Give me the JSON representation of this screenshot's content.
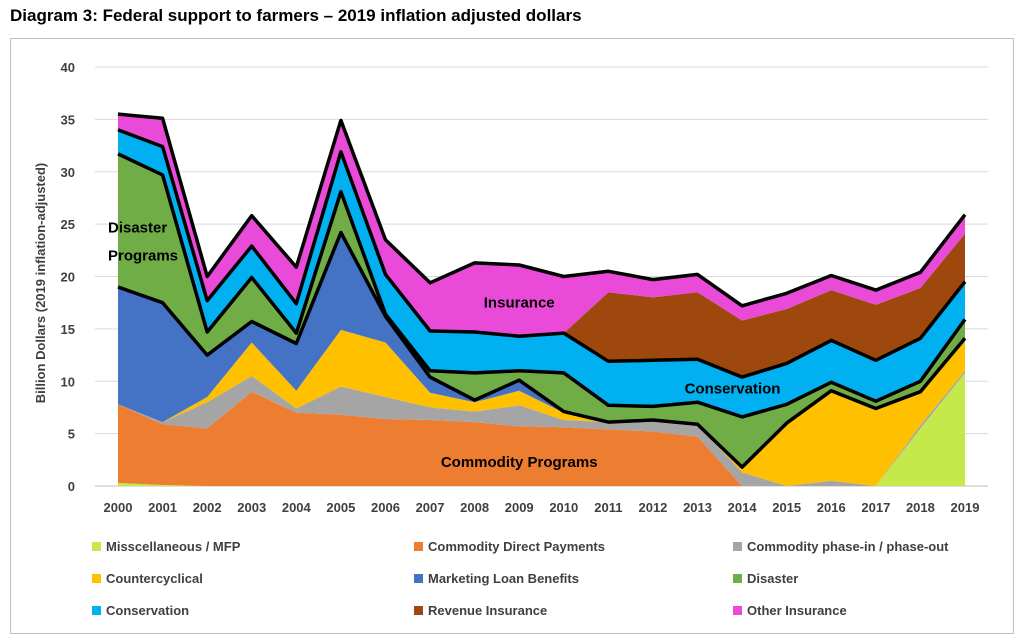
{
  "title": "Diagram 3: Federal support to farmers – 2019 inflation adjusted dollars",
  "chart_data": {
    "type": "area",
    "stacked": true,
    "title": "Diagram 3: Federal support to farmers – 2019 inflation adjusted dollars",
    "ylabel": "Billion Dollars (2019 inflation-adjusted)",
    "xlabel": "",
    "ylim": [
      0,
      40
    ],
    "yticks": [
      0,
      5,
      10,
      15,
      20,
      25,
      30,
      35,
      40
    ],
    "grid": true,
    "legend_position": "bottom",
    "categories": [
      "2000",
      "2001",
      "2002",
      "2003",
      "2004",
      "2005",
      "2006",
      "2007",
      "2008",
      "2009",
      "2010",
      "2011",
      "2012",
      "2013",
      "2014",
      "2015",
      "2016",
      "2017",
      "2018",
      "2019"
    ],
    "series": [
      {
        "name": "Misscellaneous / MFP",
        "color": "#c5e84a",
        "values": [
          0.3,
          0.1,
          0,
          0,
          0,
          0,
          0,
          0,
          0,
          0,
          0,
          0,
          0,
          0,
          0,
          0,
          0,
          0,
          5.5,
          10.8
        ]
      },
      {
        "name": "Commodity Direct Payments",
        "color": "#ed7d31",
        "values": [
          7.5,
          5.8,
          5.5,
          9,
          7,
          6.8,
          6.4,
          6.3,
          6.1,
          5.7,
          5.6,
          5.4,
          5.2,
          4.7,
          0,
          0,
          0,
          0,
          0,
          0
        ]
      },
      {
        "name": "Commodity phase-in / phase-out",
        "color": "#a5a5a5",
        "values": [
          0,
          0.2,
          2.5,
          1.5,
          0.4,
          2.7,
          2.1,
          1.2,
          1,
          2,
          0.7,
          0.7,
          1.1,
          1.2,
          1.3,
          0,
          0.5,
          0,
          0.3,
          0.2
        ]
      },
      {
        "name": "Countercyclical",
        "color": "#ffc000",
        "values": [
          0,
          0,
          0.5,
          3.2,
          1.7,
          5.4,
          5.2,
          1.4,
          0.9,
          1.4,
          0.7,
          0,
          0,
          0,
          0.5,
          6,
          8.6,
          7.4,
          3.2,
          3.1
        ]
      },
      {
        "name": "Marketing Loan Benefits",
        "color": "#4472c4",
        "values": [
          11.2,
          11.4,
          4,
          2,
          4.5,
          9.3,
          2.5,
          1.5,
          0.2,
          1,
          0.1,
          0,
          0,
          0,
          0,
          0,
          0,
          0,
          0,
          0
        ]
      },
      {
        "name": "Disaster",
        "color": "#70ad47",
        "values": [
          12.7,
          12.2,
          2.2,
          4.2,
          1,
          3.9,
          0.2,
          0.6,
          2.6,
          0.9,
          3.7,
          1.6,
          1.3,
          2.1,
          4.8,
          1.8,
          0.8,
          0.7,
          1,
          1.8
        ]
      },
      {
        "name": "Conservation",
        "color": "#00b0f0",
        "values": [
          2.3,
          2.7,
          3,
          3,
          2.8,
          3.8,
          3.8,
          3.8,
          3.9,
          3.3,
          3.8,
          4.2,
          4.4,
          4.1,
          3.8,
          3.9,
          4,
          3.9,
          4.1,
          3.6
        ]
      },
      {
        "name": "Revenue Insurance",
        "color": "#9e480e",
        "values": [
          0,
          0,
          0,
          0,
          0,
          0,
          0,
          0,
          0,
          0,
          0,
          6.6,
          6,
          6.4,
          5.4,
          5.2,
          4.8,
          5.3,
          4.8,
          4.6
        ]
      },
      {
        "name": "Other Insurance",
        "color": "#e94ad8",
        "values": [
          1.5,
          2.7,
          2.3,
          2.9,
          3.5,
          3,
          3.3,
          4.6,
          6.6,
          6.8,
          5.4,
          2,
          1.7,
          1.7,
          1.4,
          1.5,
          1.4,
          1.4,
          1.5,
          1.8
        ]
      }
    ],
    "annotations": [
      {
        "text": "Disaster",
        "x": "2000",
        "y": 24.7
      },
      {
        "text": "Programs",
        "x": "2000",
        "y": 22
      },
      {
        "text": "Insurance",
        "x": "2009",
        "y": 17.5
      },
      {
        "text": "Conservation",
        "x": "2013",
        "y": 9.3
      },
      {
        "text": "Commodity Programs",
        "x": "2009",
        "y": 2.3
      }
    ]
  }
}
